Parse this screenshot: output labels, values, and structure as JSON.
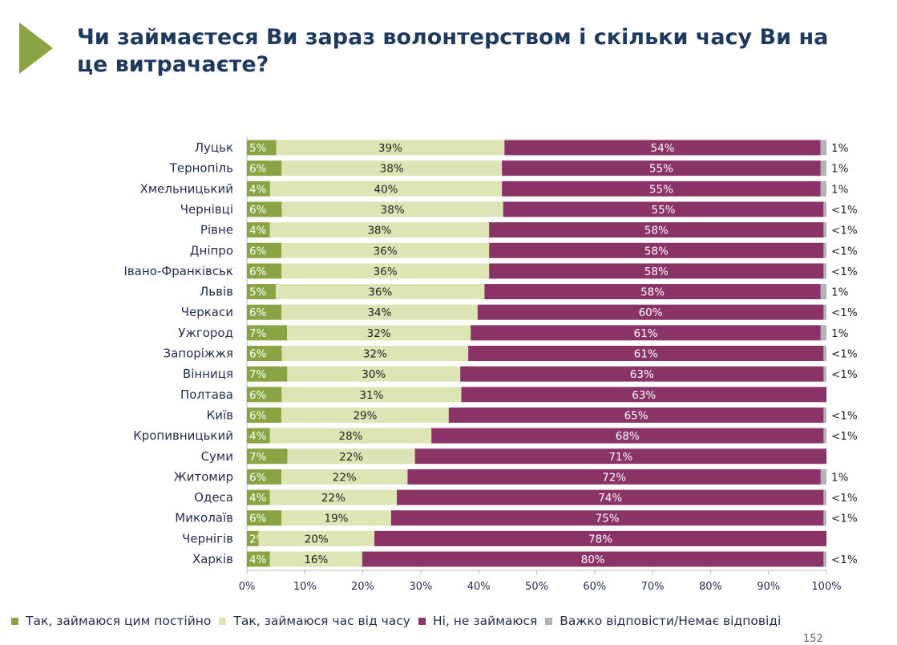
{
  "title": "Чи займаєтеся Ви зараз волонтерством і скільки часу Ви на це витрачаєте?",
  "page_number": "152",
  "colors": {
    "constant": "#8aa443",
    "sometimes": "#dde5b4",
    "no": "#8a3367",
    "hard": "#b3b3b3",
    "title": "#1f3a5f"
  },
  "chart_data": {
    "type": "bar",
    "orientation": "horizontal",
    "stacked": true,
    "categories": [
      "Луцьк",
      "Тернопіль",
      "Хмельницький",
      "Чернівці",
      "Рівне",
      "Дніпро",
      "Івано-Франківськ",
      "Львів",
      "Черкаси",
      "Ужгород",
      "Запоріжжя",
      "Вінниця",
      "Полтава",
      "Київ",
      "Кропивницький",
      "Суми",
      "Житомир",
      "Одеса",
      "Миколаїв",
      "Чернігів",
      "Харків"
    ],
    "series": [
      {
        "name": "Так, займаюся цим постійно",
        "values": [
          5,
          6,
          4,
          6,
          4,
          6,
          6,
          5,
          6,
          7,
          6,
          7,
          6,
          6,
          4,
          7,
          6,
          4,
          6,
          2,
          4
        ]
      },
      {
        "name": "Так, займаюся час від часу",
        "values": [
          39,
          38,
          40,
          38,
          38,
          36,
          36,
          36,
          34,
          32,
          32,
          30,
          31,
          29,
          28,
          22,
          22,
          22,
          19,
          20,
          16
        ]
      },
      {
        "name": "Ні, не займаюся",
        "values": [
          54,
          55,
          55,
          55,
          58,
          58,
          58,
          58,
          60,
          61,
          61,
          63,
          63,
          65,
          68,
          71,
          72,
          74,
          75,
          78,
          80
        ]
      },
      {
        "name": "Важко відповісти/Немає відповіді",
        "values": [
          1,
          1,
          1,
          0.5,
          0.5,
          0.5,
          0.5,
          1,
          0.5,
          1,
          0.5,
          0.5,
          0,
          0.5,
          0.5,
          0,
          1,
          0.5,
          0.5,
          0,
          0.5
        ],
        "labels": [
          "1%",
          "1%",
          "1%",
          "<1%",
          "<1%",
          "<1%",
          "<1%",
          "1%",
          "<1%",
          "1%",
          "<1%",
          "<1%",
          "",
          "<1%",
          "<1%",
          "",
          "1%",
          "<1%",
          "<1%",
          "",
          "<1%"
        ]
      }
    ],
    "xticks": [
      "0%",
      "10%",
      "20%",
      "30%",
      "40%",
      "50%",
      "60%",
      "70%",
      "80%",
      "90%",
      "100%"
    ],
    "xlim": [
      0,
      100
    ],
    "grid": false,
    "legend": "bottom"
  }
}
